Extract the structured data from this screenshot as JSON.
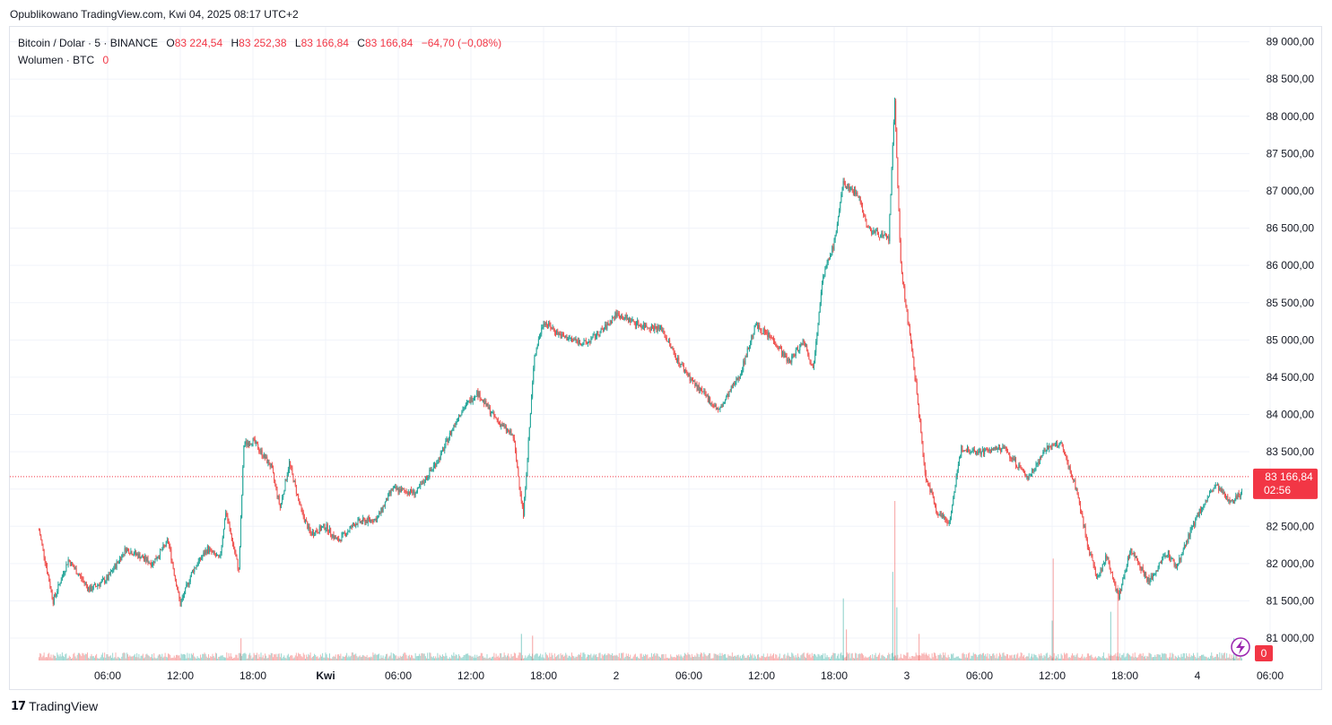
{
  "header": {
    "published": "Opublikowano TradingView.com, Kwi 04, 2025 08:17 UTC+2"
  },
  "legend": {
    "symbol": "Bitcoin / Dolar · 5 · BINANCE",
    "o_label": "O",
    "o_value": "83 224,54",
    "h_label": "H",
    "h_value": "83 252,38",
    "l_label": "L",
    "l_value": "83 166,84",
    "c_label": "C",
    "c_value": "83 166,84",
    "change": "−64,70 (−0,08%)",
    "volume_label": "Wolumen · BTC",
    "volume_value": "0"
  },
  "price_tag": {
    "price": "83 166,84",
    "countdown": "02:56"
  },
  "volume_tag": "0",
  "footer": {
    "brand": "TradingView"
  },
  "colors": {
    "up": "#26a69a",
    "down": "#ef5350",
    "current_price": "#f23645",
    "grid": "#f0f3fa",
    "text": "#131722"
  },
  "chart_data": {
    "type": "candlestick",
    "title": "Bitcoin / Dolar · 5 · BINANCE",
    "interval_minutes": 5,
    "current_price": 83166.84,
    "ylim": [
      80700,
      89200
    ],
    "y_ticks": [
      81000,
      81500,
      82000,
      82500,
      83000,
      83500,
      84000,
      84500,
      85000,
      85500,
      86000,
      86500,
      87000,
      87500,
      88000,
      88500,
      89000
    ],
    "y_tick_labels": [
      "81 000,00",
      "81 500,00",
      "82 000,00",
      "82 500,00",
      "",
      "83 500,00",
      "84 000,00",
      "84 500,00",
      "85 000,00",
      "85 500,00",
      "86 000,00",
      "86 500,00",
      "87 000,00",
      "87 500,00",
      "88 000,00",
      "88 500,00",
      "89 000,00"
    ],
    "time_start": "2025-03-31T02:00",
    "x_ticks": [
      {
        "label": "06:00",
        "t": "2025-03-31T06:00"
      },
      {
        "label": "12:00",
        "t": "2025-03-31T12:00"
      },
      {
        "label": "18:00",
        "t": "2025-03-31T18:00"
      },
      {
        "label": "Kwi",
        "t": "2025-04-01T00:00",
        "bold": true
      },
      {
        "label": "06:00",
        "t": "2025-04-01T06:00"
      },
      {
        "label": "12:00",
        "t": "2025-04-01T12:00"
      },
      {
        "label": "18:00",
        "t": "2025-04-01T18:00"
      },
      {
        "label": "2",
        "t": "2025-04-02T00:00"
      },
      {
        "label": "06:00",
        "t": "2025-04-02T06:00"
      },
      {
        "label": "12:00",
        "t": "2025-04-02T12:00"
      },
      {
        "label": "18:00",
        "t": "2025-04-02T18:00"
      },
      {
        "label": "3",
        "t": "2025-04-03T00:00"
      },
      {
        "label": "06:00",
        "t": "2025-04-03T06:00"
      },
      {
        "label": "12:00",
        "t": "2025-04-03T12:00"
      },
      {
        "label": "18:00",
        "t": "2025-04-03T18:00"
      },
      {
        "label": "4",
        "t": "2025-04-04T00:00"
      },
      {
        "label": "06:00",
        "t": "2025-04-04T06:00"
      }
    ],
    "price_path": [
      [
        "2025-03-31T00:20",
        82450
      ],
      [
        "2025-03-31T01:30",
        81500
      ],
      [
        "2025-03-31T02:45",
        82050
      ],
      [
        "2025-03-31T04:30",
        81650
      ],
      [
        "2025-03-31T06:00",
        81800
      ],
      [
        "2025-03-31T07:30",
        82200
      ],
      [
        "2025-03-31T08:40",
        82100
      ],
      [
        "2025-03-31T09:40",
        82000
      ],
      [
        "2025-03-31T11:00",
        82300
      ],
      [
        "2025-03-31T12:00",
        81450
      ],
      [
        "2025-03-31T13:00",
        81900
      ],
      [
        "2025-03-31T14:15",
        82200
      ],
      [
        "2025-03-31T15:15",
        82050
      ],
      [
        "2025-03-31T15:45",
        82700
      ],
      [
        "2025-03-31T16:50",
        81900
      ],
      [
        "2025-03-31T17:15",
        83600
      ],
      [
        "2025-03-31T18:00",
        83650
      ],
      [
        "2025-03-31T19:30",
        83300
      ],
      [
        "2025-03-31T20:15",
        82750
      ],
      [
        "2025-03-31T21:00",
        83350
      ],
      [
        "2025-03-31T22:00",
        82700
      ],
      [
        "2025-03-31T22:45",
        82400
      ],
      [
        "2025-04-01T00:00",
        82500
      ],
      [
        "2025-04-01T01:00",
        82300
      ],
      [
        "2025-04-01T02:30",
        82550
      ],
      [
        "2025-04-01T04:15",
        82600
      ],
      [
        "2025-04-01T05:30",
        83000
      ],
      [
        "2025-04-01T07:30",
        82950
      ],
      [
        "2025-04-01T09:30",
        83450
      ],
      [
        "2025-04-01T11:00",
        84000
      ],
      [
        "2025-04-01T12:30",
        84300
      ],
      [
        "2025-04-01T14:00",
        83950
      ],
      [
        "2025-04-01T15:30",
        83700
      ],
      [
        "2025-04-01T16:20",
        82650
      ],
      [
        "2025-04-01T17:15",
        84800
      ],
      [
        "2025-04-01T18:00",
        85250
      ],
      [
        "2025-04-01T19:30",
        85050
      ],
      [
        "2025-04-01T21:30",
        84950
      ],
      [
        "2025-04-01T23:00",
        85150
      ],
      [
        "2025-04-02T00:00",
        85350
      ],
      [
        "2025-04-02T02:00",
        85200
      ],
      [
        "2025-04-02T03:45",
        85150
      ],
      [
        "2025-04-02T05:00",
        84750
      ],
      [
        "2025-04-02T06:30",
        84400
      ],
      [
        "2025-04-02T08:30",
        84050
      ],
      [
        "2025-04-02T10:15",
        84550
      ],
      [
        "2025-04-02T11:30",
        85200
      ],
      [
        "2025-04-02T13:00",
        85000
      ],
      [
        "2025-04-02T14:15",
        84700
      ],
      [
        "2025-04-02T15:30",
        85000
      ],
      [
        "2025-04-02T16:15",
        84600
      ],
      [
        "2025-04-02T17:00",
        85800
      ],
      [
        "2025-04-02T18:00",
        86300
      ],
      [
        "2025-04-02T18:45",
        87100
      ],
      [
        "2025-04-02T20:00",
        86950
      ],
      [
        "2025-04-02T20:45",
        86500
      ],
      [
        "2025-04-02T22:30",
        86350
      ],
      [
        "2025-04-02T23:00",
        88200
      ],
      [
        "2025-04-02T23:30",
        86000
      ],
      [
        "2025-04-03T00:15",
        85050
      ],
      [
        "2025-04-03T00:50",
        84300
      ],
      [
        "2025-04-03T01:30",
        83200
      ],
      [
        "2025-04-03T02:30",
        82700
      ],
      [
        "2025-04-03T03:30",
        82550
      ],
      [
        "2025-04-03T04:30",
        83550
      ],
      [
        "2025-04-03T06:00",
        83500
      ],
      [
        "2025-04-03T08:00",
        83550
      ],
      [
        "2025-04-03T10:00",
        83150
      ],
      [
        "2025-04-03T11:30",
        83550
      ],
      [
        "2025-04-03T12:45",
        83600
      ],
      [
        "2025-04-03T14:00",
        83000
      ],
      [
        "2025-04-03T15:00",
        82200
      ],
      [
        "2025-04-03T15:45",
        81800
      ],
      [
        "2025-04-03T16:30",
        82100
      ],
      [
        "2025-04-03T17:30",
        81550
      ],
      [
        "2025-04-03T18:30",
        82200
      ],
      [
        "2025-04-03T20:00",
        81750
      ],
      [
        "2025-04-03T21:30",
        82150
      ],
      [
        "2025-04-03T22:15",
        81950
      ],
      [
        "2025-04-04T00:00",
        82650
      ],
      [
        "2025-04-04T01:30",
        83050
      ],
      [
        "2025-04-04T02:30",
        82850
      ],
      [
        "2025-04-04T04:00",
        82950
      ],
      [
        "2025-04-04T05:30",
        82750
      ],
      [
        "2025-04-04T07:00",
        83200
      ],
      [
        "2025-04-04T08:15",
        83166.84
      ]
    ],
    "volume": {
      "unit": "BTC",
      "spikes": [
        [
          "2025-03-31T17:00",
          25
        ],
        [
          "2025-04-01T16:10",
          30
        ],
        [
          "2025-04-01T17:05",
          28
        ],
        [
          "2025-04-02T18:45",
          70
        ],
        [
          "2025-04-02T19:00",
          35
        ],
        [
          "2025-04-02T22:50",
          100
        ],
        [
          "2025-04-02T23:00",
          180
        ],
        [
          "2025-04-02T23:10",
          60
        ],
        [
          "2025-04-03T01:00",
          30
        ],
        [
          "2025-04-03T12:00",
          45
        ],
        [
          "2025-04-03T12:05",
          115
        ],
        [
          "2025-04-03T16:50",
          55
        ],
        [
          "2025-04-03T17:25",
          85
        ],
        [
          "2025-04-04T03:00",
          25
        ]
      ]
    }
  }
}
